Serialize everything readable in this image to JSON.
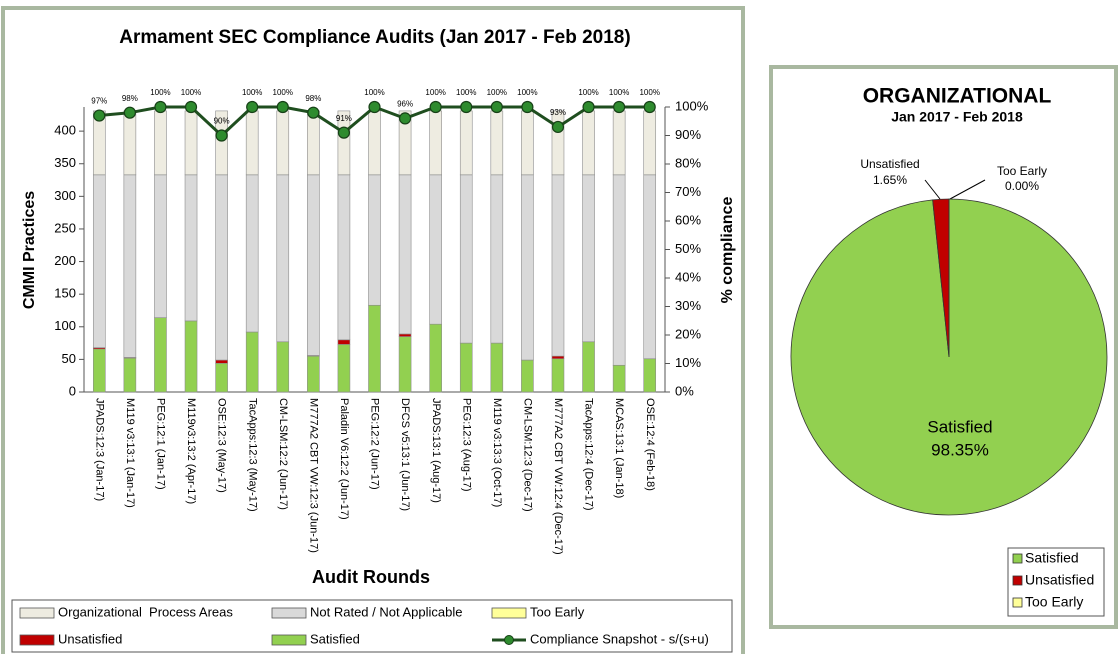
{
  "chart_data": [
    {
      "type": "bar",
      "title": "Armament SEC Compliance Audits (Jan 2017 - Feb 2018)",
      "xlabel": "Audit Rounds",
      "ylabel": "CMMI Practices",
      "y2label": "% compliance",
      "categories": [
        "JPADS:12:3 (Jan-17)",
        "M119 v3:13:1 (Jan-17)",
        "PEG:12:1 (Jan-17)",
        "M119v3:13:2 (Apr-17)",
        "OSE:12:3 (May-17)",
        "TacApps:12:3 (May-17)",
        "CM-LSM:12:2 (Jun-17)",
        "M777A2 CBT VW:12:3 (Jun-17)",
        "Paladin V6:12:2 (Jun-17)",
        "PEG:12:2 (Jun-17)",
        "DFCS v5:13:1 (Jun-17)",
        "JPADS:13:1 (Aug-17)",
        "PEG:12:3 (Aug-17)",
        "M119 v3:13:3 (Oct-17)",
        "CM-LSM:12:3 (Dec-17)",
        "M777A2 CBT VW:12:4 (Dec-17)",
        "TacApps:12:4 (Dec-17)",
        "MCAS:13:1 (Jan-18)",
        "OSE:12:4 (Feb-18)"
      ],
      "series": [
        {
          "name": "Organizational  Process Areas",
          "color": "#eeece1",
          "values": [
            98,
            98,
            98,
            98,
            98,
            98,
            98,
            98,
            98,
            98,
            98,
            98,
            98,
            98,
            98,
            98,
            98,
            98,
            98
          ]
        },
        {
          "name": "Not Rated / Not Applicable",
          "color": "#d9d9d9",
          "values": [
            265,
            280,
            219,
            224,
            284,
            241,
            256,
            277,
            253,
            200,
            244,
            229,
            258,
            258,
            284,
            278,
            256,
            292,
            282
          ]
        },
        {
          "name": "Too Early",
          "color": "#ffff99",
          "values": [
            0,
            0,
            0,
            0,
            0,
            0,
            0,
            0,
            0,
            0,
            0,
            0,
            0,
            0,
            0,
            0,
            0,
            0,
            0
          ]
        },
        {
          "name": "Unsatisfied",
          "color": "#c00000",
          "values": [
            2,
            1,
            0,
            0,
            5,
            0,
            0,
            1,
            7,
            0,
            4,
            0,
            0,
            0,
            0,
            4,
            0,
            0,
            0
          ]
        },
        {
          "name": "Satisfied",
          "color": "#92d050",
          "values": [
            66,
            52,
            114,
            109,
            44,
            92,
            77,
            55,
            73,
            133,
            85,
            104,
            75,
            75,
            49,
            51,
            77,
            41,
            51
          ]
        },
        {
          "name": "Compliance Snapshot - s/(s+u)",
          "type": "line",
          "axis": "y2",
          "color": "#1f4e1f",
          "values": [
            97,
            98,
            100,
            100,
            90,
            100,
            100,
            98,
            91,
            100,
            96,
            100,
            100,
            100,
            100,
            93,
            100,
            100,
            100
          ],
          "value_labels": [
            "97%",
            "98%",
            "100%",
            "100%",
            "90%",
            "100%",
            "100%",
            "98%",
            "91%",
            "100%",
            "96%",
            "100%",
            "100%",
            "100%",
            "100%",
            "93%",
            "100%",
            "100%",
            "100%"
          ]
        }
      ],
      "stacked": true,
      "ylim": [
        0,
        437
      ],
      "yticks": [
        0,
        50,
        100,
        150,
        200,
        250,
        300,
        350,
        400
      ],
      "y2lim": [
        0,
        100
      ],
      "y2ticks": [
        {
          "value": 0,
          "label": "0%"
        },
        {
          "value": 10,
          "label": "10%"
        },
        {
          "value": 20,
          "label": "20%"
        },
        {
          "value": 30,
          "label": "30%"
        },
        {
          "value": 40,
          "label": "40%"
        },
        {
          "value": 50,
          "label": "50%"
        },
        {
          "value": 60,
          "label": "60%"
        },
        {
          "value": 70,
          "label": "70%"
        },
        {
          "value": 80,
          "label": "80%"
        },
        {
          "value": 90,
          "label": "90%"
        },
        {
          "value": 100,
          "label": "100%"
        }
      ],
      "legend": "bottom"
    },
    {
      "type": "pie",
      "title": "ORGANIZATIONAL",
      "subtitle": "Jan 2017 - Feb 2018",
      "categories": [
        "Satisfied",
        "Unsatisfied",
        "Too Early"
      ],
      "values": [
        98.35,
        1.65,
        0.0
      ],
      "value_labels": [
        "98.35%",
        "1.65%",
        "0.00%"
      ],
      "colors": [
        "#92d050",
        "#c00000",
        "#ffff99"
      ],
      "legend": "lower right"
    }
  ]
}
